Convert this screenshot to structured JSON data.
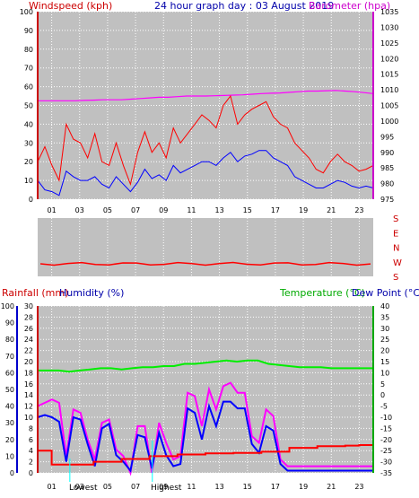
{
  "header": {
    "windspeed_label": "Windspeed (kph)",
    "title": "24 hour graph day : 03 August 2019",
    "barometer_label": "Barometer (hpa)"
  },
  "lower_header": {
    "rainfall_label": "Rainfall (mm)",
    "humidity_label": "Humidity (%)",
    "temperature_label": "Temperature (°C)",
    "dewpoint_label": "Dew Point (°C)"
  },
  "markers": {
    "lowest": "Lowest",
    "highest": "Highest"
  },
  "colors": {
    "plot_bg": "#c0c0c0",
    "wind_gust": "#ff0000",
    "wind_avg": "#0000ff",
    "barometer": "#ff00ff",
    "direction": "#ff0000",
    "rain": "#ff0000",
    "humidity": "#ff00ff",
    "temperature": "#00ee00",
    "dewpoint": "#0000ff",
    "hilo": "#00ffff"
  },
  "chart_data": [
    {
      "type": "line",
      "title": "24 hour graph day : 03 August 2019",
      "x_ticks": [
        "01",
        "03",
        "05",
        "07",
        "09",
        "11",
        "13",
        "15",
        "17",
        "19",
        "21",
        "23"
      ],
      "ylabel": "Windspeed (kph)",
      "ylim": [
        0,
        100
      ],
      "y_ticks": [
        0,
        10,
        20,
        30,
        40,
        50,
        60,
        70,
        80,
        90,
        100
      ],
      "y2label": "Barometer (hpa)",
      "y2lim": [
        975,
        1035
      ],
      "y2_ticks": [
        975,
        980,
        985,
        990,
        995,
        1000,
        1005,
        1010,
        1015,
        1020,
        1025,
        1030,
        1035
      ],
      "series": [
        {
          "name": "Windspeed gust",
          "values": [
            20,
            28,
            18,
            10,
            40,
            32,
            30,
            22,
            35,
            20,
            18,
            30,
            18,
            8,
            25,
            36,
            25,
            30,
            22,
            38,
            30,
            35,
            40,
            45,
            42,
            38,
            50,
            55,
            40,
            45,
            48,
            50,
            52,
            44,
            40,
            38,
            30,
            26,
            22,
            16,
            14,
            20,
            24,
            20,
            18,
            15,
            16,
            18
          ]
        },
        {
          "name": "Windspeed average",
          "values": [
            10,
            5,
            4,
            2,
            15,
            12,
            10,
            10,
            12,
            8,
            6,
            12,
            8,
            4,
            9,
            16,
            11,
            13,
            10,
            18,
            14,
            16,
            18,
            20,
            20,
            18,
            22,
            25,
            20,
            23,
            24,
            26,
            26,
            22,
            20,
            18,
            12,
            10,
            8,
            6,
            6,
            8,
            10,
            9,
            7,
            6,
            7,
            6
          ]
        },
        {
          "name": "Barometer",
          "values": [
            1006.5,
            1006.5,
            1006.5,
            1006.5,
            1006.5,
            1006.6,
            1006.7,
            1006.8,
            1006.8,
            1006.8,
            1007.0,
            1007.2,
            1007.4,
            1007.6,
            1007.6,
            1007.8,
            1008.0,
            1008.0,
            1008.0,
            1008.1,
            1008.2,
            1008.3,
            1008.4,
            1008.6,
            1008.8,
            1008.9,
            1009.0,
            1009.2,
            1009.4,
            1009.6,
            1009.6,
            1009.7,
            1009.8,
            1009.6,
            1009.4,
            1009.1,
            1008.8
          ]
        }
      ]
    },
    {
      "type": "line",
      "y_ticks_right": [
        "S",
        "E",
        "N",
        "W",
        "S"
      ],
      "series": [
        {
          "name": "Wind direction",
          "values": [
            "S",
            "S",
            "S",
            "S",
            "S",
            "S",
            "S",
            "S",
            "S",
            "S",
            "S",
            "S",
            "S",
            "S",
            "S",
            "S",
            "S",
            "S",
            "S",
            "S",
            "S",
            "S",
            "S",
            "S",
            "S"
          ]
        }
      ]
    },
    {
      "type": "line",
      "x_ticks": [
        "01",
        "03",
        "05",
        "07",
        "09",
        "11",
        "13",
        "15",
        "17",
        "19",
        "21",
        "23"
      ],
      "y1label": "Humidity (%)",
      "y1lim": [
        0,
        100
      ],
      "y1_ticks": [
        0,
        10,
        20,
        30,
        40,
        50,
        60,
        70,
        80,
        90,
        100
      ],
      "y1b_label": "Rainfall (mm)",
      "y1b_lim": [
        0,
        30
      ],
      "y1b_ticks": [
        0,
        2,
        4,
        6,
        8,
        10,
        12,
        14,
        16,
        18,
        20,
        22,
        24,
        26,
        28,
        30
      ],
      "y2label": "Temperature (°C)",
      "y2lim": [
        -35,
        40
      ],
      "y2_ticks": [
        -35,
        -30,
        -25,
        -20,
        -15,
        -10,
        -5,
        0,
        5,
        10,
        15,
        20,
        25,
        30,
        35,
        40
      ],
      "series": [
        {
          "name": "Rainfall",
          "x": [
            0,
            1,
            2,
            4,
            6,
            8,
            10,
            12,
            14,
            16,
            18,
            20,
            22,
            23,
            24
          ],
          "values": [
            4,
            1.5,
            1.5,
            2,
            2.5,
            3,
            3.3,
            3.5,
            3.6,
            3.8,
            4.5,
            4.8,
            4.9,
            5,
            5
          ]
        },
        {
          "name": "Humidity",
          "values": [
            40,
            42,
            44,
            42,
            10,
            38,
            36,
            20,
            8,
            30,
            32,
            14,
            10,
            0,
            28,
            28,
            0,
            30,
            18,
            8,
            10,
            48,
            46,
            28,
            50,
            38,
            52,
            54,
            48,
            48,
            22,
            18,
            38,
            34,
            8,
            4,
            4,
            4,
            4,
            4,
            4,
            4,
            4,
            4,
            4,
            4,
            4,
            4
          ]
        },
        {
          "name": "Temperature",
          "values": [
            11,
            11,
            11,
            10.5,
            11,
            11.5,
            12,
            12,
            11.5,
            12,
            12.5,
            12.5,
            13,
            13,
            14,
            14,
            14.5,
            15,
            15.5,
            15,
            15.5,
            15.5,
            14,
            13.5,
            13,
            12.5,
            12.5,
            12.5,
            12,
            12,
            12,
            12,
            12
          ]
        },
        {
          "name": "Dew Point",
          "values": [
            -10,
            -9,
            -10,
            -12,
            -30,
            -10,
            -11,
            -22,
            -32,
            -15,
            -13,
            -27,
            -30,
            -34,
            -18,
            -19,
            -33,
            -17,
            -27,
            -32,
            -31,
            -6,
            -8,
            -20,
            -5,
            -14,
            -3,
            -3,
            -6,
            -6,
            -22,
            -26,
            -14,
            -16,
            -31,
            -34,
            -34,
            -34,
            -34,
            -34,
            -34,
            -34,
            -34,
            -34,
            -34,
            -34,
            -34,
            -34
          ]
        }
      ]
    }
  ]
}
